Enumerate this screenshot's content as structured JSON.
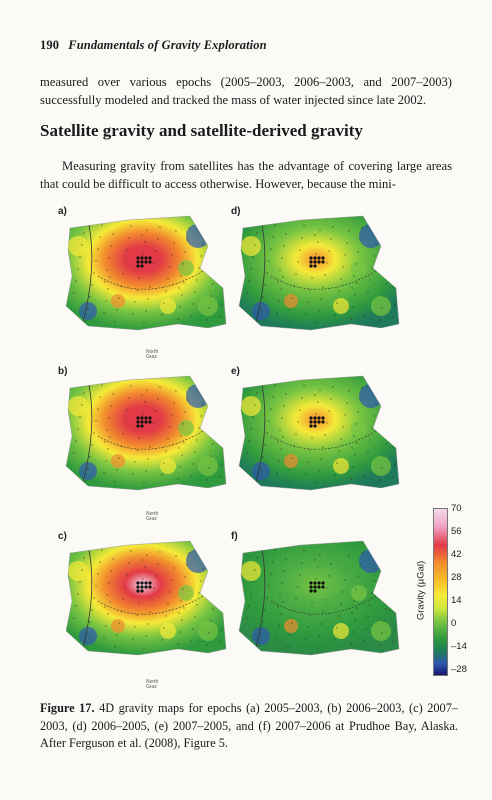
{
  "running_head": {
    "page_number": "190",
    "book_title": "Fundamentals of Gravity Exploration"
  },
  "paragraph_1": "measured over various epochs (2005–2003, 2006–2003, and 2007–2003) successfully modeled and tracked the mass of water injected since late 2002.",
  "section_heading": "Satellite gravity and satellite-derived gravity",
  "paragraph_2": "Measuring gravity from satellites has the advantage of covering large areas that could be difficult to access otherwise. However, because the mini-",
  "figure": {
    "panels": [
      {
        "label": "a)",
        "intensity": 0.75
      },
      {
        "label": "b)",
        "intensity": 0.85
      },
      {
        "label": "c)",
        "intensity": 1.0
      },
      {
        "label": "d)",
        "intensity": 0.35
      },
      {
        "label": "e)",
        "intensity": 0.55
      },
      {
        "label": "f)",
        "intensity": 0.15
      }
    ],
    "north_arrow_text": "North\nGraz",
    "colorbar": {
      "title": "Gravity (µGal)",
      "ticks": [
        "70",
        "56",
        "42",
        "28",
        "14",
        "0",
        "–14",
        "–28"
      ],
      "colors": {
        "max": "#f4d9ea",
        "high": "#e23a47",
        "mid": "#f6ea38",
        "zero": "#77c442",
        "low": "#2f58b0",
        "min": "#16166e"
      }
    },
    "caption_label": "Figure 17.",
    "caption_text": " 4D gravity maps for epochs (a) 2005–2003, (b) 2006–2003, (c) 2007–2003, (d) 2006–2005, (e) 2007–2005, and (f) 2007–2006 at Prudhoe Bay, Alaska. After Ferguson et al. (2008), Figure 5."
  }
}
